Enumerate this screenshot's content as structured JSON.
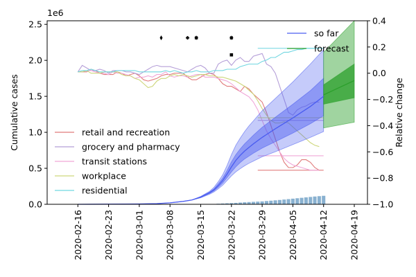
{
  "chart_data": {
    "type": "line",
    "axes": {
      "x": {
        "ticks": [
          "2020-02-16",
          "2020-02-23",
          "2020-03-01",
          "2020-03-08",
          "2020-03-15",
          "2020-03-22",
          "2020-03-29",
          "2020-04-05",
          "2020-04-12",
          "2020-04-19"
        ],
        "range": [
          "2020-02-09",
          "2020-04-22"
        ]
      },
      "y_left": {
        "label": "Cumulative cases",
        "multiplier": "1e6",
        "range": [
          0,
          2550000
        ],
        "ticks": [
          "0.0",
          "0.5",
          "1.0",
          "1.5",
          "2.0",
          "2.5"
        ]
      },
      "y_right": {
        "label": "Relative change",
        "range": [
          -1.0,
          0.4
        ],
        "ticks": [
          "−1.0",
          "−0.8",
          "−0.6",
          "−0.4",
          "−0.2",
          "0.0",
          "0.2",
          "0.4"
        ]
      }
    },
    "grid": false,
    "legend_upper_right": [
      {
        "name": "so far",
        "color": "#4a5cf0"
      },
      {
        "name": "forecast",
        "color": "#2ca02c"
      }
    ],
    "legend_lower_left": [
      {
        "name": "retail and recreation",
        "color": "#e07b7b"
      },
      {
        "name": "grocery and pharmacy",
        "color": "#b59fd8"
      },
      {
        "name": "transit stations",
        "color": "#f0a6d8"
      },
      {
        "name": "workplace",
        "color": "#cdd67a"
      },
      {
        "name": "residential",
        "color": "#6fd6e0"
      }
    ],
    "so_far": {
      "color": "#4a5cf0",
      "dates": [
        "2020-02-16",
        "2020-02-23",
        "2020-03-01",
        "2020-03-05",
        "2020-03-08",
        "2020-03-11",
        "2020-03-13",
        "2020-03-15",
        "2020-03-17",
        "2020-03-18",
        "2020-03-19",
        "2020-03-20",
        "2020-03-21",
        "2020-03-22",
        "2020-03-23",
        "2020-03-24",
        "2020-03-25",
        "2020-03-26",
        "2020-03-27",
        "2020-03-29",
        "2020-04-01",
        "2020-04-05",
        "2020-04-09",
        "2020-04-12"
      ],
      "median": [
        0,
        2000,
        5000,
        10000,
        20000,
        40000,
        60000,
        100000,
        160000,
        200000,
        260000,
        330000,
        420000,
        520000,
        610000,
        680000,
        740000,
        790000,
        840000,
        930000,
        1050000,
        1200000,
        1360000,
        1500000
      ],
      "inner_lo": [
        0,
        2000,
        5000,
        10000,
        20000,
        40000,
        60000,
        95000,
        150000,
        185000,
        235000,
        295000,
        370000,
        450000,
        520000,
        580000,
        630000,
        670000,
        710000,
        780000,
        870000,
        990000,
        1120000,
        1230000
      ],
      "inner_hi": [
        0,
        2000,
        5000,
        10000,
        20000,
        40000,
        60000,
        105000,
        170000,
        215000,
        285000,
        365000,
        470000,
        590000,
        690000,
        770000,
        840000,
        900000,
        960000,
        1070000,
        1210000,
        1390000,
        1580000,
        1750000
      ],
      "outer_lo": [
        0,
        2000,
        5000,
        10000,
        20000,
        40000,
        60000,
        90000,
        140000,
        170000,
        215000,
        265000,
        330000,
        395000,
        450000,
        495000,
        535000,
        570000,
        600000,
        660000,
        730000,
        830000,
        930000,
        1010000
      ],
      "outer_hi": [
        0,
        2000,
        5000,
        10000,
        20000,
        40000,
        60000,
        110000,
        180000,
        235000,
        315000,
        410000,
        540000,
        690000,
        820000,
        920000,
        1010000,
        1090000,
        1160000,
        1300000,
        1470000,
        1700000,
        1950000,
        2150000
      ]
    },
    "forecast": {
      "color": "#2ca02c",
      "dates": [
        "2020-04-12",
        "2020-04-19"
      ],
      "median": [
        1520000,
        1720000
      ],
      "inner_lo": [
        1390000,
        1480000
      ],
      "inner_hi": [
        1660000,
        1950000
      ],
      "outer_lo": [
        1060000,
        1140000
      ],
      "outer_hi": [
        2110000,
        2550000
      ]
    },
    "daily_bars": {
      "color": "#6b9dc4",
      "dates": [
        "2020-03-19",
        "2020-03-20",
        "2020-03-21",
        "2020-03-22",
        "2020-03-23",
        "2020-03-24",
        "2020-03-25",
        "2020-03-26",
        "2020-03-27",
        "2020-03-28",
        "2020-03-29",
        "2020-03-30",
        "2020-03-31",
        "2020-04-01",
        "2020-04-02",
        "2020-04-03",
        "2020-04-04",
        "2020-04-05",
        "2020-04-06",
        "2020-04-07",
        "2020-04-08",
        "2020-04-09",
        "2020-04-10",
        "2020-04-11",
        "2020-04-12"
      ],
      "values": [
        8000,
        11000,
        14000,
        17000,
        20000,
        24000,
        28000,
        31000,
        34000,
        37000,
        40000,
        45000,
        50000,
        55000,
        60000,
        66000,
        72000,
        78000,
        84000,
        90000,
        96000,
        102000,
        108000,
        113000,
        118000
      ]
    },
    "markers": [
      {
        "date": "2020-03-06",
        "symbol": "diamond"
      },
      {
        "date": "2020-03-12",
        "symbol": "plus"
      },
      {
        "date": "2020-03-14",
        "symbol": "star"
      },
      {
        "date": "2020-03-22",
        "symbol": "star"
      },
      {
        "date": "2020-03-22",
        "symbol": "square"
      }
    ],
    "mobility": {
      "start": "2020-02-16",
      "retail and recreation": [
        0.01,
        0.01,
        0.01,
        0.03,
        0.02,
        0.0,
        -0.01,
        -0.01,
        -0.01,
        0.01,
        0.0,
        -0.02,
        -0.01,
        0.0,
        -0.02,
        -0.05,
        -0.06,
        -0.05,
        -0.04,
        -0.02,
        -0.01,
        -0.01,
        0.0,
        0.0,
        0.0,
        -0.03,
        -0.05,
        -0.05,
        -0.03,
        -0.01,
        0.0,
        -0.01,
        -0.04,
        -0.08,
        -0.1,
        -0.1,
        -0.12,
        -0.14,
        -0.1,
        -0.12,
        -0.16,
        -0.19,
        -0.22,
        -0.3,
        -0.4,
        -0.5,
        -0.6,
        -0.68,
        -0.72,
        -0.72,
        -0.7,
        -0.66,
        -0.66,
        -0.68,
        -0.72,
        -0.74
      ],
      "grocery and pharmacy": [
        0.01,
        0.06,
        0.04,
        0.02,
        0.02,
        0.03,
        0.02,
        0.0,
        0.02,
        0.02,
        0.02,
        0.01,
        0.01,
        0.0,
        -0.01,
        0.01,
        0.03,
        0.05,
        0.06,
        0.05,
        0.05,
        0.05,
        0.04,
        0.03,
        0.02,
        0.01,
        0.03,
        0.05,
        0.06,
        0.04,
        0.0,
        0.0,
        0.07,
        0.09,
        0.1,
        0.06,
        0.1,
        0.12,
        0.09,
        0.09,
        0.13,
        0.14,
        0.15,
        0.07,
        0.05,
        0.0,
        -0.1,
        -0.2,
        -0.3,
        -0.32,
        -0.28,
        -0.26,
        -0.25,
        -0.23,
        -0.22,
        -0.22
      ],
      "transit stations": [
        0.01,
        0.01,
        0.02,
        0.02,
        0.01,
        0.0,
        0.0,
        -0.01,
        0.01,
        0.0,
        0.0,
        -0.01,
        -0.02,
        -0.04,
        -0.03,
        -0.03,
        -0.02,
        -0.03,
        -0.01,
        -0.01,
        0.01,
        -0.02,
        -0.03,
        -0.02,
        -0.02,
        -0.03,
        -0.02,
        -0.01,
        -0.01,
        -0.03,
        -0.03,
        -0.03,
        -0.04,
        -0.05,
        -0.06,
        -0.08,
        -0.11,
        -0.14,
        -0.16,
        -0.18,
        -0.22,
        -0.28,
        -0.36,
        -0.44,
        -0.5,
        -0.55,
        -0.6,
        -0.65,
        -0.68,
        -0.7,
        -0.71,
        -0.72,
        -0.73,
        -0.74,
        -0.74,
        -0.74
      ],
      "workplace": [
        0.01,
        0.01,
        0.02,
        0.0,
        0.0,
        0.0,
        0.01,
        0.01,
        0.01,
        0.01,
        -0.01,
        -0.02,
        -0.02,
        -0.04,
        -0.05,
        -0.08,
        -0.11,
        -0.1,
        -0.06,
        -0.04,
        -0.04,
        -0.02,
        -0.01,
        -0.02,
        -0.01,
        -0.02,
        -0.03,
        -0.02,
        -0.01,
        -0.01,
        -0.02,
        -0.02,
        -0.03,
        -0.03,
        -0.04,
        -0.05,
        -0.06,
        -0.08,
        -0.1,
        -0.13,
        -0.16,
        -0.21,
        -0.27,
        -0.32,
        -0.36,
        -0.38,
        -0.38,
        -0.37,
        -0.38,
        -0.41,
        -0.44,
        -0.47,
        -0.5,
        -0.53,
        -0.55,
        -0.56
      ],
      "residential": [
        0.01,
        0.02,
        0.02,
        0.03,
        0.02,
        0.01,
        0.01,
        0.01,
        0.01,
        0.02,
        0.02,
        0.02,
        0.02,
        0.02,
        0.01,
        0.01,
        0.01,
        0.01,
        0.01,
        0.01,
        0.02,
        0.01,
        0.02,
        0.01,
        0.0,
        0.01,
        0.01,
        0.02,
        0.01,
        0.01,
        0.01,
        0.02,
        0.02,
        0.02,
        0.03,
        0.03,
        0.03,
        0.05,
        0.06,
        0.07,
        0.07,
        0.07,
        0.09,
        0.1,
        0.12,
        0.12,
        0.14,
        0.16,
        0.16,
        0.17,
        0.18,
        0.18,
        0.19,
        0.19,
        0.19,
        0.19
      ]
    },
    "mobility_tail": {
      "from": "2020-03-28",
      "to": "2020-04-12",
      "retail and recreation": -0.74,
      "grocery and pharmacy": -0.36,
      "transit stations": -0.63,
      "workplace": -0.34,
      "residential": 0.19
    }
  }
}
